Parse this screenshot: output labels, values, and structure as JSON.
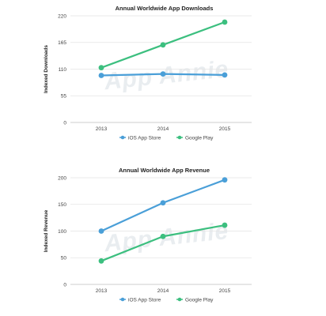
{
  "chart_data": [
    {
      "type": "line",
      "title": "Annual Worldwide App Downloads",
      "xlabel": "",
      "ylabel": "Indexed Downloads",
      "categories": [
        "2013",
        "2014",
        "2015"
      ],
      "yticks": [
        0,
        55,
        110,
        165,
        220
      ],
      "ylim": [
        0,
        220
      ],
      "grid": true,
      "legend": "bottom-center",
      "watermark": "App Annie",
      "series": [
        {
          "name": "iOS App Store",
          "color": "#4a9fd8",
          "values": [
            97,
            100,
            98
          ]
        },
        {
          "name": "Google Play",
          "color": "#3cbf7f",
          "values": [
            113,
            160,
            207
          ]
        }
      ]
    },
    {
      "type": "line",
      "title": "Annual Worldwide App Revenue",
      "xlabel": "",
      "ylabel": "Indexed Revenue",
      "categories": [
        "2013",
        "2014",
        "2015"
      ],
      "yticks": [
        0,
        50,
        100,
        150,
        200
      ],
      "ylim": [
        0,
        200
      ],
      "grid": true,
      "legend": "bottom-center",
      "watermark": "App Annie",
      "series": [
        {
          "name": "iOS App Store",
          "color": "#4a9fd8",
          "values": [
            100,
            153,
            196
          ]
        },
        {
          "name": "Google Play",
          "color": "#3cbf7f",
          "values": [
            44,
            90,
            111
          ]
        }
      ]
    }
  ]
}
